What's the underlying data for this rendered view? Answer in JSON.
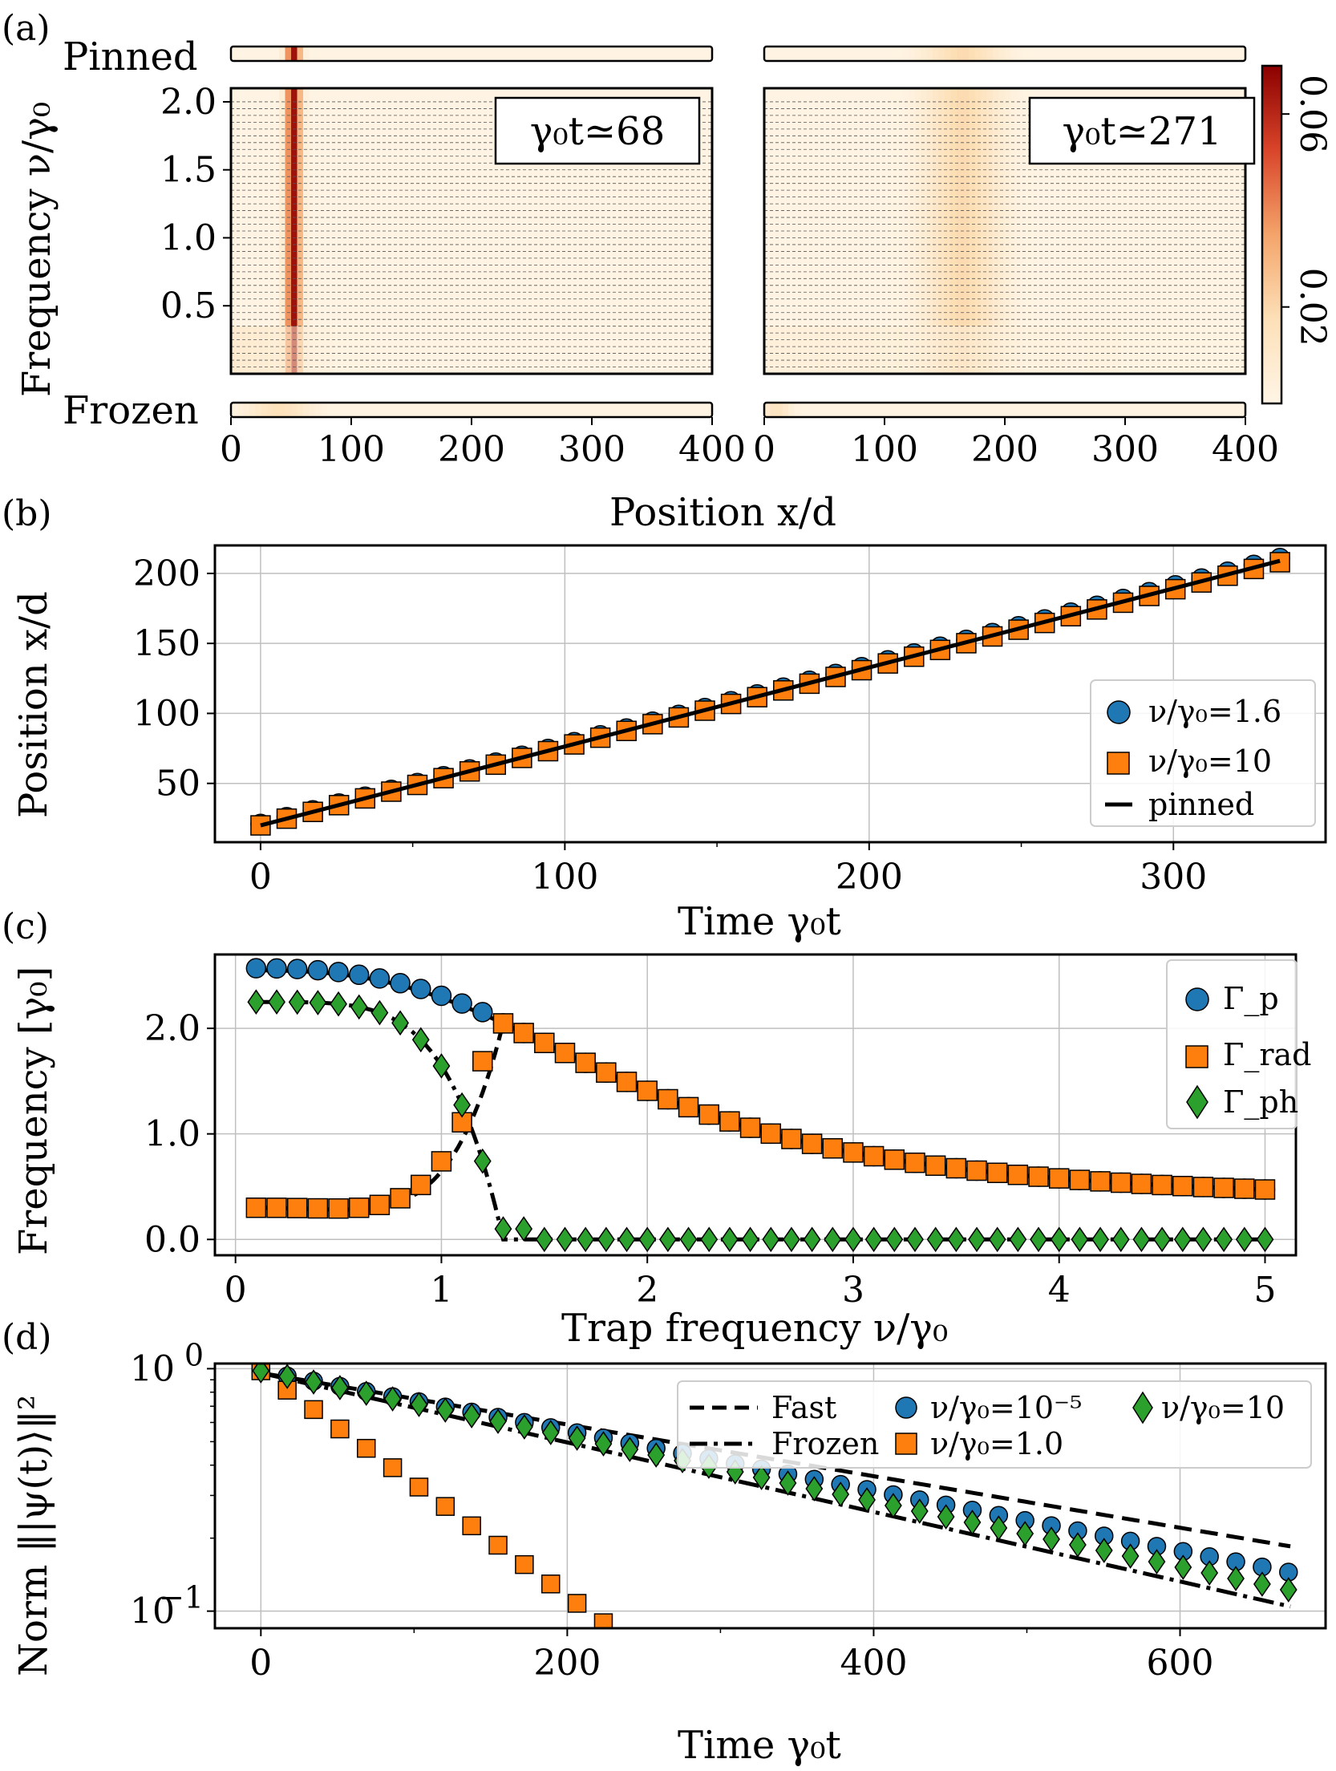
{
  "figure": {
    "panel_labels": [
      "(a)",
      "(b)",
      "(c)",
      "(d)"
    ]
  },
  "chart_data": [
    {
      "id": "a",
      "type": "heatmap",
      "xlabel": "Position x/d",
      "ylabel": "Frequency ν/γ₀",
      "xlim": [
        0,
        400
      ],
      "ylim": [
        0,
        2.1
      ],
      "x_ticks": [
        "0",
        "100",
        "200",
        "300",
        "400"
      ],
      "y_ticks": [
        {
          "v": 0.5,
          "label": "0.5"
        },
        {
          "v": 1.0,
          "label": "1.0"
        },
        {
          "v": 1.5,
          "label": "1.5"
        },
        {
          "v": 2.0,
          "label": "2.0"
        }
      ],
      "strip_labels": {
        "top": "Pinned",
        "bottom": "Frozen"
      },
      "colorbar": {
        "ticks": [
          {
            "v": 0.02,
            "label": "0.02"
          },
          {
            "v": 0.06,
            "label": "0.06"
          }
        ],
        "range": [
          0,
          0.07
        ],
        "colors": [
          "#fff5e6",
          "#fde0b8",
          "#f4a46a",
          "#d9452a",
          "#8b0000"
        ]
      },
      "subplots": [
        {
          "annotation": "γ₀t≃68",
          "peak_x": 52,
          "width": 6,
          "peak_value": 0.065
        },
        {
          "annotation": "γ₀t≃271",
          "peak_x": 165,
          "width": 30,
          "peak_value": 0.018
        }
      ]
    },
    {
      "id": "b",
      "type": "line",
      "xlabel": "Time γ₀t",
      "ylabel": "Position x/d",
      "xlim": [
        -15,
        350
      ],
      "ylim": [
        8,
        220
      ],
      "x_ticks": [
        0,
        100,
        200,
        300
      ],
      "y_ticks": [
        50,
        100,
        150,
        200
      ],
      "series": [
        {
          "name": "ν/γ₀=1.6",
          "marker": "circle",
          "color": "#1f77b4",
          "x0": 0,
          "x1": 335,
          "y0": 21,
          "y1": 211,
          "n": 40
        },
        {
          "name": "ν/γ₀=10",
          "marker": "square",
          "color": "#ff7f0e",
          "x0": 0,
          "x1": 335,
          "y0": 20,
          "y1": 208,
          "n": 40
        },
        {
          "name": "pinned",
          "style": "solid",
          "color": "#000000",
          "x0": 0,
          "x1": 335,
          "y0": 20,
          "y1": 209
        }
      ]
    },
    {
      "id": "c",
      "type": "line",
      "xlabel": "Trap frequency ν/γ₀",
      "ylabel": "Frequency [γ₀]",
      "xlim": [
        -0.1,
        5.15
      ],
      "ylim": [
        -0.15,
        2.7
      ],
      "x_ticks": [
        0,
        1,
        2,
        3,
        4,
        5
      ],
      "y_ticks": [
        {
          "v": 0,
          "label": "0.0"
        },
        {
          "v": 1,
          "label": "1.0"
        },
        {
          "v": 2,
          "label": "2.0"
        }
      ],
      "series": [
        {
          "name": "Γ_p",
          "marker": "circle",
          "color": "#1f77b4"
        },
        {
          "name": "Γ_rad",
          "marker": "square",
          "color": "#ff7f0e"
        },
        {
          "name": "Γ_ph",
          "marker": "diamond",
          "color": "#2ca02c"
        }
      ]
    },
    {
      "id": "d",
      "type": "line",
      "log_y": true,
      "xlabel": "Time γ₀t",
      "ylabel": "Norm ‖|ψ(t)⟩‖²",
      "xlim": [
        -30,
        695
      ],
      "ylim": [
        0.085,
        1.05
      ],
      "x_ticks": [
        0,
        200,
        400,
        600
      ],
      "y_ticks": [
        {
          "v": 1,
          "label": "10",
          "exp": "0"
        },
        {
          "v": 0.1,
          "label": "10",
          "exp": "−1"
        }
      ],
      "series": [
        {
          "name": "Fast",
          "style": "dashed",
          "rate": 0.00245
        },
        {
          "name": "Frozen",
          "style": "dashdot",
          "rate": 0.0033
        },
        {
          "name": "ν/γ₀=10⁻⁵",
          "marker": "circle",
          "color": "#1f77b4",
          "rate": 0.00285
        },
        {
          "name": "ν/γ₀=1.0",
          "marker": "square",
          "color": "#ff7f0e",
          "rate": 0.0107
        },
        {
          "name": "ν/γ₀=10",
          "marker": "diamond",
          "color": "#2ca02c",
          "rate": 0.0031
        }
      ]
    }
  ]
}
